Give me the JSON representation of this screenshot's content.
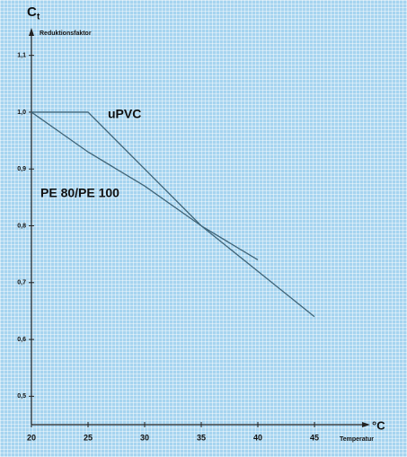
{
  "chart_data": {
    "type": "line",
    "y_symbol": "C",
    "y_symbol_sub": "t",
    "y_label": "Reduktionsfaktor",
    "x_symbol": "°C",
    "x_label": "Temperatur",
    "x": [
      20,
      25,
      30,
      35,
      40,
      45
    ],
    "series": [
      {
        "name": "uPVC",
        "color": "#3f6478",
        "values": [
          1.0,
          1.0,
          0.9,
          0.8,
          0.72,
          0.64
        ]
      },
      {
        "name": "PE 80/PE 100",
        "color": "#3f6478",
        "values": [
          1.0,
          0.93,
          0.87,
          0.8,
          0.74,
          null
        ]
      }
    ],
    "xlim": [
      20,
      50
    ],
    "ylim": [
      0.45,
      1.15
    ],
    "xticks": [
      20,
      25,
      30,
      35,
      40,
      45
    ],
    "yticks": [
      {
        "value": 0.5,
        "label": "0,5"
      },
      {
        "value": 0.6,
        "label": "0,6"
      },
      {
        "value": 0.7,
        "label": "0,7"
      },
      {
        "value": 0.8,
        "label": "0,8"
      },
      {
        "value": 0.9,
        "label": "0,9"
      },
      {
        "value": 1.0,
        "label": "1,0"
      },
      {
        "value": 1.1,
        "label": "1,1"
      }
    ]
  }
}
